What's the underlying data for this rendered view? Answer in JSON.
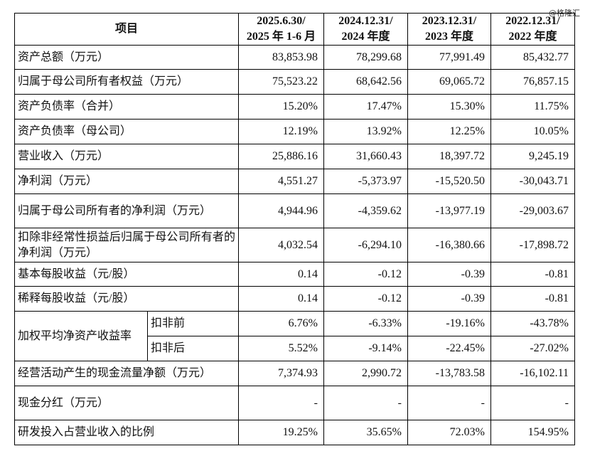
{
  "watermark": "@格隆汇",
  "table": {
    "header": {
      "item": "项目",
      "periods": [
        [
          "2025.6.30/",
          "2025 年 1-6 月"
        ],
        [
          "2024.12.31/",
          "2024 年度"
        ],
        [
          "2023.12.31/",
          "2023 年度"
        ],
        [
          "2022.12.31/",
          "2022 年度"
        ]
      ]
    },
    "rows": [
      {
        "label": "资产总额（万元）",
        "values": [
          "83,853.98",
          "78,299.68",
          "77,991.49",
          "85,432.77"
        ]
      },
      {
        "label": "归属于母公司所有者权益（万元）",
        "values": [
          "75,523.22",
          "68,642.56",
          "69,065.72",
          "76,857.15"
        ]
      },
      {
        "label": "资产负债率（合并）",
        "values": [
          "15.20%",
          "17.47%",
          "15.30%",
          "11.75%"
        ]
      },
      {
        "label": "资产负债率（母公司）",
        "values": [
          "12.19%",
          "13.92%",
          "12.25%",
          "10.05%"
        ]
      },
      {
        "label": "营业收入（万元）",
        "values": [
          "25,886.16",
          "31,660.43",
          "18,397.72",
          "9,245.19"
        ]
      },
      {
        "label": "净利润（万元）",
        "values": [
          "4,551.27",
          "-5,373.97",
          "-15,520.50",
          "-30,043.71"
        ]
      },
      {
        "label": "归属于母公司所有者的净利润（万元）",
        "values": [
          "4,944.96",
          "-4,359.62",
          "-13,977.19",
          "-29,003.67"
        ]
      },
      {
        "label": "扣除非经常性损益后归属于母公司所有者的净利润（万元）",
        "values": [
          "4,032.54",
          "-6,294.10",
          "-16,380.66",
          "-17,898.72"
        ]
      },
      {
        "label": "基本每股收益（元/股）",
        "values": [
          "0.14",
          "-0.12",
          "-0.39",
          "-0.81"
        ]
      },
      {
        "label": "稀释每股收益（元/股）",
        "values": [
          "0.14",
          "-0.12",
          "-0.39",
          "-0.81"
        ]
      },
      {
        "label": "加权平均净资产收益率",
        "subrows": [
          {
            "label": "扣非前",
            "values": [
              "6.76%",
              "-6.33%",
              "-19.16%",
              "-43.78%"
            ]
          },
          {
            "label": "扣非后",
            "values": [
              "5.52%",
              "-9.14%",
              "-22.45%",
              "-27.02%"
            ]
          }
        ]
      },
      {
        "label": "经营活动产生的现金流量净额（万元）",
        "values": [
          "7,374.93",
          "2,990.72",
          "-13,783.58",
          "-16,102.11"
        ]
      },
      {
        "label": "现金分红（万元）",
        "values": [
          "-",
          "-",
          "-",
          "-"
        ]
      },
      {
        "label": "研发投入占营业收入的比例",
        "values": [
          "19.25%",
          "35.65%",
          "72.03%",
          "154.95%"
        ]
      }
    ]
  }
}
